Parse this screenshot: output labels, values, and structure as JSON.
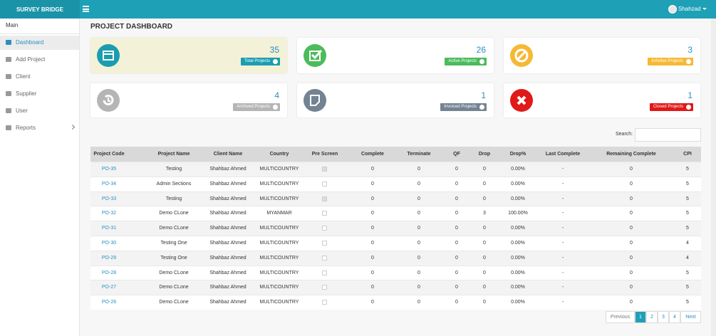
{
  "header": {
    "brand": "SURVEY BRIDGE",
    "user": "Shahzad"
  },
  "sidebar": {
    "section": "Main",
    "items": [
      "Dashboard",
      "Add Project",
      "Client",
      "Supplier",
      "User",
      "Reports"
    ]
  },
  "page_title": "PROJECT DASHBOARD",
  "cards": [
    {
      "value": "35",
      "label": "Total Projects"
    },
    {
      "value": "26",
      "label": "Active Projects"
    },
    {
      "value": "3",
      "label": "InActive Projects"
    },
    {
      "value": "4",
      "label": "Archived Projects"
    },
    {
      "value": "1",
      "label": "Invoiced Projects"
    },
    {
      "value": "1",
      "label": "Closed Projects"
    }
  ],
  "search_label": "Search:",
  "table": {
    "columns": [
      "Project Code",
      "Project Name",
      "Client Name",
      "Country",
      "Pre Screen",
      "Complete",
      "Terminate",
      "QF",
      "Drop",
      "Drop%",
      "Last Complete",
      "Remaining Complete",
      "CPI"
    ],
    "rows": [
      [
        "PO-35",
        "Testing",
        "Shahbaz Ahmed",
        "MULTICOUNTRY",
        true,
        "0",
        "0",
        "0",
        "0",
        "0.00%",
        "-",
        "0",
        "5"
      ],
      [
        "PO-34",
        "Admin Sections",
        "Shahbaz Ahmed",
        "MULTICOUNTRY",
        false,
        "0",
        "0",
        "0",
        "0",
        "0.00%",
        "-",
        "0",
        "5"
      ],
      [
        "PO-33",
        "Testing",
        "Shahbaz Ahmed",
        "MULTICOUNTRY",
        true,
        "0",
        "0",
        "0",
        "0",
        "0.00%",
        "-",
        "0",
        "5"
      ],
      [
        "PO-32",
        "Demo CLone",
        "Shahbaz Ahmed",
        "MYANMAR",
        false,
        "0",
        "0",
        "0",
        "3",
        "100.00%",
        "-",
        "0",
        "5"
      ],
      [
        "PO-31",
        "Demo CLone",
        "Shahbaz Ahmed",
        "MULTICOUNTRY",
        false,
        "0",
        "0",
        "0",
        "0",
        "0.00%",
        "-",
        "0",
        "5"
      ],
      [
        "PO-30",
        "Testing One",
        "Shahbaz Ahmed",
        "MULTICOUNTRY",
        false,
        "0",
        "0",
        "0",
        "0",
        "0.00%",
        "-",
        "0",
        "4"
      ],
      [
        "PO-29",
        "Testing One",
        "Shahbaz Ahmed",
        "MULTICOUNTRY",
        false,
        "0",
        "0",
        "0",
        "0",
        "0.00%",
        "-",
        "0",
        "4"
      ],
      [
        "PO-28",
        "Demo CLone",
        "Shahbaz Ahmed",
        "MULTICOUNTRY",
        false,
        "0",
        "0",
        "0",
        "0",
        "0.00%",
        "-",
        "0",
        "5"
      ],
      [
        "PO-27",
        "Demo CLone",
        "Shahbaz Ahmed",
        "MULTICOUNTRY",
        false,
        "0",
        "0",
        "0",
        "0",
        "0.00%",
        "-",
        "0",
        "5"
      ],
      [
        "PO-26",
        "Demo CLone",
        "Shahbaz Ahmed",
        "MULTICOUNTRY",
        false,
        "0",
        "0",
        "0",
        "0",
        "0.00%",
        "-",
        "0",
        "5"
      ]
    ]
  },
  "pagination": [
    "Previous",
    "1",
    "2",
    "3",
    "4",
    "Next"
  ]
}
